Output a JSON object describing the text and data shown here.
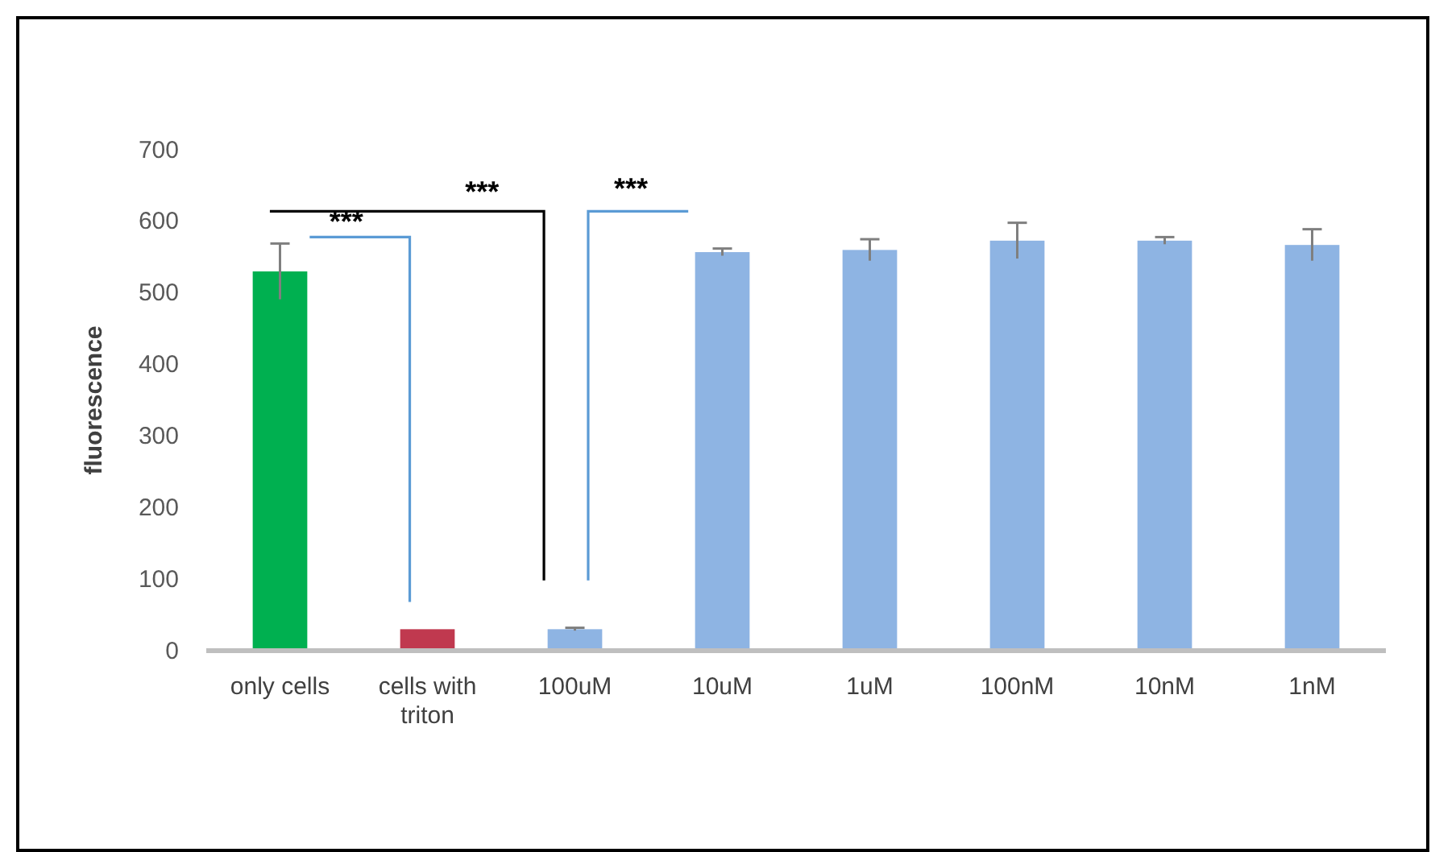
{
  "chart_data": {
    "type": "bar",
    "ylabel": "fluorescence",
    "categories": [
      "only cells",
      "cells with triton",
      "100uM",
      "10uM",
      "1uM",
      "100nM",
      "10nM",
      "1nM"
    ],
    "values": [
      530,
      30,
      30,
      557,
      560,
      573,
      573,
      567
    ],
    "errors": [
      39,
      null,
      2,
      5,
      15,
      25,
      5,
      22
    ],
    "colors": [
      "#00b050",
      "#c0394f",
      "#8eb4e3",
      "#8eb4e3",
      "#8eb4e3",
      "#8eb4e3",
      "#8eb4e3",
      "#8eb4e3"
    ],
    "ylim": [
      0,
      700
    ],
    "yticks": [
      0,
      100,
      200,
      300,
      400,
      500,
      600,
      700
    ],
    "grid": false,
    "annotations": [
      "***",
      "***",
      "***"
    ]
  }
}
